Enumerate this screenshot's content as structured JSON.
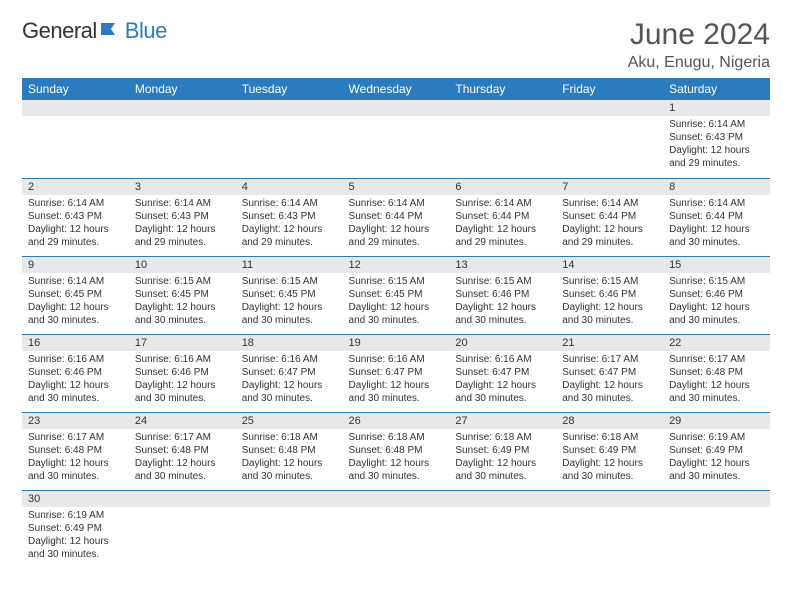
{
  "logo": {
    "text1": "General",
    "text2": "Blue"
  },
  "title": "June 2024",
  "location": "Aku, Enugu, Nigeria",
  "colors": {
    "header_bg": "#2b7bbf",
    "header_text": "#ffffff",
    "daynum_bg": "#e8e8e8",
    "border": "#2b7bbf",
    "text": "#333333",
    "title_color": "#555555"
  },
  "weekdays": [
    "Sunday",
    "Monday",
    "Tuesday",
    "Wednesday",
    "Thursday",
    "Friday",
    "Saturday"
  ],
  "weeks": [
    [
      null,
      null,
      null,
      null,
      null,
      null,
      {
        "day": "1",
        "sunrise": "Sunrise: 6:14 AM",
        "sunset": "Sunset: 6:43 PM",
        "daylight": "Daylight: 12 hours and 29 minutes."
      }
    ],
    [
      {
        "day": "2",
        "sunrise": "Sunrise: 6:14 AM",
        "sunset": "Sunset: 6:43 PM",
        "daylight": "Daylight: 12 hours and 29 minutes."
      },
      {
        "day": "3",
        "sunrise": "Sunrise: 6:14 AM",
        "sunset": "Sunset: 6:43 PM",
        "daylight": "Daylight: 12 hours and 29 minutes."
      },
      {
        "day": "4",
        "sunrise": "Sunrise: 6:14 AM",
        "sunset": "Sunset: 6:43 PM",
        "daylight": "Daylight: 12 hours and 29 minutes."
      },
      {
        "day": "5",
        "sunrise": "Sunrise: 6:14 AM",
        "sunset": "Sunset: 6:44 PM",
        "daylight": "Daylight: 12 hours and 29 minutes."
      },
      {
        "day": "6",
        "sunrise": "Sunrise: 6:14 AM",
        "sunset": "Sunset: 6:44 PM",
        "daylight": "Daylight: 12 hours and 29 minutes."
      },
      {
        "day": "7",
        "sunrise": "Sunrise: 6:14 AM",
        "sunset": "Sunset: 6:44 PM",
        "daylight": "Daylight: 12 hours and 29 minutes."
      },
      {
        "day": "8",
        "sunrise": "Sunrise: 6:14 AM",
        "sunset": "Sunset: 6:44 PM",
        "daylight": "Daylight: 12 hours and 30 minutes."
      }
    ],
    [
      {
        "day": "9",
        "sunrise": "Sunrise: 6:14 AM",
        "sunset": "Sunset: 6:45 PM",
        "daylight": "Daylight: 12 hours and 30 minutes."
      },
      {
        "day": "10",
        "sunrise": "Sunrise: 6:15 AM",
        "sunset": "Sunset: 6:45 PM",
        "daylight": "Daylight: 12 hours and 30 minutes."
      },
      {
        "day": "11",
        "sunrise": "Sunrise: 6:15 AM",
        "sunset": "Sunset: 6:45 PM",
        "daylight": "Daylight: 12 hours and 30 minutes."
      },
      {
        "day": "12",
        "sunrise": "Sunrise: 6:15 AM",
        "sunset": "Sunset: 6:45 PM",
        "daylight": "Daylight: 12 hours and 30 minutes."
      },
      {
        "day": "13",
        "sunrise": "Sunrise: 6:15 AM",
        "sunset": "Sunset: 6:46 PM",
        "daylight": "Daylight: 12 hours and 30 minutes."
      },
      {
        "day": "14",
        "sunrise": "Sunrise: 6:15 AM",
        "sunset": "Sunset: 6:46 PM",
        "daylight": "Daylight: 12 hours and 30 minutes."
      },
      {
        "day": "15",
        "sunrise": "Sunrise: 6:15 AM",
        "sunset": "Sunset: 6:46 PM",
        "daylight": "Daylight: 12 hours and 30 minutes."
      }
    ],
    [
      {
        "day": "16",
        "sunrise": "Sunrise: 6:16 AM",
        "sunset": "Sunset: 6:46 PM",
        "daylight": "Daylight: 12 hours and 30 minutes."
      },
      {
        "day": "17",
        "sunrise": "Sunrise: 6:16 AM",
        "sunset": "Sunset: 6:46 PM",
        "daylight": "Daylight: 12 hours and 30 minutes."
      },
      {
        "day": "18",
        "sunrise": "Sunrise: 6:16 AM",
        "sunset": "Sunset: 6:47 PM",
        "daylight": "Daylight: 12 hours and 30 minutes."
      },
      {
        "day": "19",
        "sunrise": "Sunrise: 6:16 AM",
        "sunset": "Sunset: 6:47 PM",
        "daylight": "Daylight: 12 hours and 30 minutes."
      },
      {
        "day": "20",
        "sunrise": "Sunrise: 6:16 AM",
        "sunset": "Sunset: 6:47 PM",
        "daylight": "Daylight: 12 hours and 30 minutes."
      },
      {
        "day": "21",
        "sunrise": "Sunrise: 6:17 AM",
        "sunset": "Sunset: 6:47 PM",
        "daylight": "Daylight: 12 hours and 30 minutes."
      },
      {
        "day": "22",
        "sunrise": "Sunrise: 6:17 AM",
        "sunset": "Sunset: 6:48 PM",
        "daylight": "Daylight: 12 hours and 30 minutes."
      }
    ],
    [
      {
        "day": "23",
        "sunrise": "Sunrise: 6:17 AM",
        "sunset": "Sunset: 6:48 PM",
        "daylight": "Daylight: 12 hours and 30 minutes."
      },
      {
        "day": "24",
        "sunrise": "Sunrise: 6:17 AM",
        "sunset": "Sunset: 6:48 PM",
        "daylight": "Daylight: 12 hours and 30 minutes."
      },
      {
        "day": "25",
        "sunrise": "Sunrise: 6:18 AM",
        "sunset": "Sunset: 6:48 PM",
        "daylight": "Daylight: 12 hours and 30 minutes."
      },
      {
        "day": "26",
        "sunrise": "Sunrise: 6:18 AM",
        "sunset": "Sunset: 6:48 PM",
        "daylight": "Daylight: 12 hours and 30 minutes."
      },
      {
        "day": "27",
        "sunrise": "Sunrise: 6:18 AM",
        "sunset": "Sunset: 6:49 PM",
        "daylight": "Daylight: 12 hours and 30 minutes."
      },
      {
        "day": "28",
        "sunrise": "Sunrise: 6:18 AM",
        "sunset": "Sunset: 6:49 PM",
        "daylight": "Daylight: 12 hours and 30 minutes."
      },
      {
        "day": "29",
        "sunrise": "Sunrise: 6:19 AM",
        "sunset": "Sunset: 6:49 PM",
        "daylight": "Daylight: 12 hours and 30 minutes."
      }
    ],
    [
      {
        "day": "30",
        "sunrise": "Sunrise: 6:19 AM",
        "sunset": "Sunset: 6:49 PM",
        "daylight": "Daylight: 12 hours and 30 minutes."
      },
      null,
      null,
      null,
      null,
      null,
      null
    ]
  ]
}
